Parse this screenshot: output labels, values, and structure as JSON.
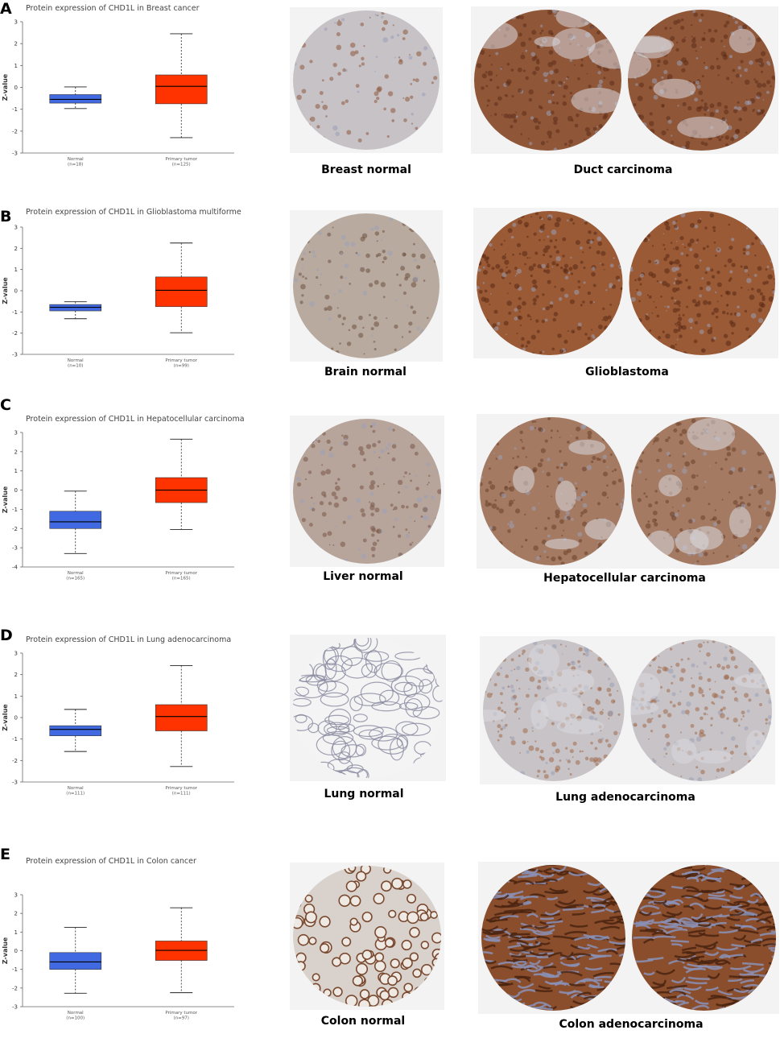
{
  "panels": [
    {
      "label": "A",
      "chart_data": {
        "type": "box",
        "title": "Protein expression of CHD1L in Breast cancer",
        "ylabel": "Z-value",
        "ylim": [
          -3,
          3
        ],
        "yticks": [
          3,
          2,
          1,
          0,
          -1,
          -2,
          -3
        ],
        "categories": [
          "Normal",
          "Primary tumor"
        ],
        "counts": [
          "(n=18)",
          "(n=125)"
        ],
        "boxes": [
          {
            "name": "Normal",
            "min": -0.97,
            "q1": -0.72,
            "median": -0.55,
            "q3": -0.33,
            "max": 0.02,
            "color": "#4169e1"
          },
          {
            "name": "Primary tumor",
            "min": -2.3,
            "q1": -0.75,
            "median": 0.05,
            "q3": 0.57,
            "max": 2.45,
            "color": "#ff3300"
          }
        ]
      },
      "images": [
        {
          "caption": "Breast normal",
          "kind": "breast-normal",
          "count": 1
        },
        {
          "caption": "Duct carcinoma",
          "kind": "carcinoma",
          "count": 2
        }
      ]
    },
    {
      "label": "B",
      "chart_data": {
        "type": "box",
        "title": "Protein expression of CHD1L in Glioblastoma multiforme",
        "ylabel": "Z-value",
        "ylim": [
          -3,
          3
        ],
        "yticks": [
          3,
          2,
          1,
          0,
          -1,
          -2,
          -3
        ],
        "categories": [
          "Normal",
          "Primary tumor"
        ],
        "counts": [
          "(n=10)",
          "(n=99)"
        ],
        "boxes": [
          {
            "name": "Normal",
            "min": -1.32,
            "q1": -0.95,
            "median": -0.78,
            "q3": -0.65,
            "max": -0.52,
            "color": "#4169e1"
          },
          {
            "name": "Primary tumor",
            "min": -1.98,
            "q1": -0.75,
            "median": 0.02,
            "q3": 0.65,
            "max": 2.25,
            "color": "#ff3300"
          }
        ]
      },
      "images": [
        {
          "caption": "Brain normal",
          "kind": "brain-normal",
          "count": 1
        },
        {
          "caption": "Glioblastoma",
          "kind": "dense",
          "count": 2
        }
      ]
    },
    {
      "label": "C",
      "chart_data": {
        "type": "box",
        "title": "Protein expression of CHD1L in Hepatocellular carcinoma",
        "ylabel": "Z-value",
        "ylim": [
          -4,
          3
        ],
        "yticks": [
          3,
          2,
          1,
          0,
          -1,
          -2,
          -3,
          -4
        ],
        "categories": [
          "Normal",
          "Primary tumor"
        ],
        "counts": [
          "(n=165)",
          "(n=165)"
        ],
        "boxes": [
          {
            "name": "Normal",
            "min": -3.3,
            "q1": -2.0,
            "median": -1.65,
            "q3": -1.1,
            "max": -0.05,
            "color": "#4169e1"
          },
          {
            "name": "Primary tumor",
            "min": -2.05,
            "q1": -0.65,
            "median": 0.0,
            "q3": 0.65,
            "max": 2.65,
            "color": "#ff3300"
          }
        ]
      },
      "images": [
        {
          "caption": "Liver normal",
          "kind": "liver-normal",
          "count": 1
        },
        {
          "caption": "Hepatocellular carcinoma",
          "kind": "hcc",
          "count": 2
        }
      ]
    },
    {
      "label": "D",
      "chart_data": {
        "type": "box",
        "title": "Protein expression of CHD1L in Lung adenocarcinoma",
        "ylabel": "Z-value",
        "ylim": [
          -3,
          3
        ],
        "yticks": [
          3,
          2,
          1,
          0,
          -1,
          -2,
          -3
        ],
        "categories": [
          "Normal",
          "Primary tumor"
        ],
        "counts": [
          "(n=111)",
          "(n=111)"
        ],
        "boxes": [
          {
            "name": "Normal",
            "min": -1.58,
            "q1": -0.85,
            "median": -0.55,
            "q3": -0.38,
            "max": 0.38,
            "color": "#4169e1"
          },
          {
            "name": "Primary tumor",
            "min": -2.28,
            "q1": -0.62,
            "median": 0.05,
            "q3": 0.6,
            "max": 2.42,
            "color": "#ff3300"
          }
        ]
      },
      "images": [
        {
          "caption": "Lung normal",
          "kind": "lung-normal",
          "count": 1
        },
        {
          "caption": "Lung adenocarcinoma",
          "kind": "lung-adeno",
          "count": 2
        }
      ]
    },
    {
      "label": "E",
      "chart_data": {
        "type": "box",
        "title": "Protein expression of CHD1L in Colon cancer",
        "ylabel": "Z-value",
        "ylim": [
          -3,
          3
        ],
        "yticks": [
          3,
          2,
          1,
          0,
          -1,
          -2,
          -3
        ],
        "categories": [
          "Normal",
          "Primary tumor"
        ],
        "counts": [
          "(n=100)",
          "(n=97)"
        ],
        "boxes": [
          {
            "name": "Normal",
            "min": -2.28,
            "q1": -1.0,
            "median": -0.6,
            "q3": -0.1,
            "max": 1.25,
            "color": "#4169e1"
          },
          {
            "name": "Primary tumor",
            "min": -2.25,
            "q1": -0.52,
            "median": 0.02,
            "q3": 0.52,
            "max": 2.3,
            "color": "#ff3300"
          }
        ]
      },
      "images": [
        {
          "caption": "Colon normal",
          "kind": "colon-normal",
          "count": 1
        },
        {
          "caption": "Colon adenocarcinoma",
          "kind": "colon-adeno",
          "count": 2
        }
      ]
    }
  ]
}
